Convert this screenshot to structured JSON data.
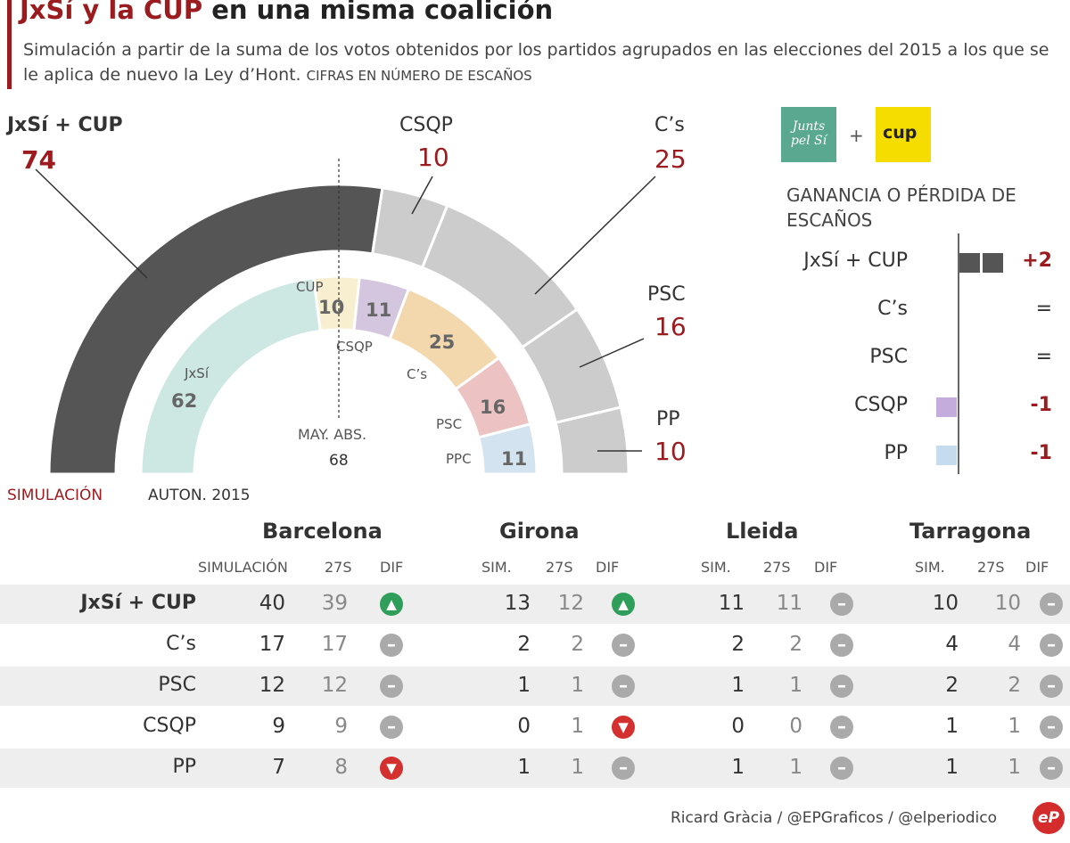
{
  "header": {
    "title_red": "JxSí y la CUP",
    "title_rest": " en una misma coalición",
    "subtitle": "Simulación a partir de la suma de los votos obtenidos por los partidos agrupados en las elecciones del 2015 a los que se le aplica de nuevo la Ley d’Hont. ",
    "subtitle_caps": "CIFRAS EN NÚMERO DE ESCAÑOS"
  },
  "chart_data": {
    "type": "pie",
    "subtype": "parliament-semicircle",
    "majority_label": "MAY. ABS.",
    "majority_value": "68",
    "outer_series_label": "SIMULACIÓN",
    "inner_series_label": "AUTON. 2015",
    "outer": [
      {
        "label": "JxSí + CUP",
        "value": 74,
        "color": "#555555"
      },
      {
        "label": "CSQP",
        "value": 10,
        "color": "#cccccc"
      },
      {
        "label": "C’s",
        "value": 25,
        "color": "#cccccc"
      },
      {
        "label": "PSC",
        "value": 16,
        "color": "#cccccc"
      },
      {
        "label": "PP",
        "value": 10,
        "color": "#cccccc"
      }
    ],
    "inner": [
      {
        "label": "JxSí",
        "value": 62,
        "color": "#cde7e3"
      },
      {
        "label": "CUP",
        "value": 10,
        "color": "#f7efcf"
      },
      {
        "label": "CSQP",
        "value": 11,
        "color": "#d5c6e0"
      },
      {
        "label": "C’s",
        "value": 25,
        "color": "#f3d8ae"
      },
      {
        "label": "PSC",
        "value": 16,
        "color": "#edc2c2"
      },
      {
        "label": "PPC",
        "value": 11,
        "color": "#d4e3f0"
      }
    ],
    "gain": {
      "title": "GANANCIA O PÉRDIDA DE ESCAÑOS",
      "rows": [
        {
          "label": "JxSí + CUP",
          "value": 2,
          "display": "+2",
          "color": "#555555"
        },
        {
          "label": "C’s",
          "value": 0,
          "display": "=",
          "color": "#cccccc"
        },
        {
          "label": "PSC",
          "value": 0,
          "display": "=",
          "color": "#cccccc"
        },
        {
          "label": "CSQP",
          "value": -1,
          "display": "-1",
          "color": "#c4addd"
        },
        {
          "label": "PP",
          "value": -1,
          "display": "-1",
          "color": "#c5dcef"
        }
      ]
    }
  },
  "logos": {
    "junts": "Junts pel Sí",
    "cup": "cup",
    "plus": "+"
  },
  "table": {
    "provinces": [
      "Barcelona",
      "Girona",
      "Lleida",
      "Tarragona"
    ],
    "col_heads": [
      [
        "SIMULACIÓN",
        "27S",
        "DIF"
      ],
      [
        "SIM.",
        "27S",
        "DIF"
      ],
      [
        "SIM.",
        "27S",
        "DIF"
      ],
      [
        "SIM.",
        "27S",
        "DIF"
      ]
    ],
    "rows": [
      {
        "party": "JxSí + CUP",
        "bold": true,
        "cells": [
          [
            "40",
            "39",
            "up"
          ],
          [
            "13",
            "12",
            "up"
          ],
          [
            "11",
            "11",
            "eq"
          ],
          [
            "10",
            "10",
            "eq"
          ]
        ]
      },
      {
        "party": "C’s",
        "bold": false,
        "cells": [
          [
            "17",
            "17",
            "eq"
          ],
          [
            "2",
            "2",
            "eq"
          ],
          [
            "2",
            "2",
            "eq"
          ],
          [
            "4",
            "4",
            "eq"
          ]
        ]
      },
      {
        "party": "PSC",
        "bold": false,
        "cells": [
          [
            "12",
            "12",
            "eq"
          ],
          [
            "1",
            "1",
            "eq"
          ],
          [
            "1",
            "1",
            "eq"
          ],
          [
            "2",
            "2",
            "eq"
          ]
        ]
      },
      {
        "party": "CSQP",
        "bold": false,
        "cells": [
          [
            "9",
            "9",
            "eq"
          ],
          [
            "0",
            "1",
            "down"
          ],
          [
            "0",
            "0",
            "eq"
          ],
          [
            "1",
            "1",
            "eq"
          ]
        ]
      },
      {
        "party": "PP",
        "bold": false,
        "cells": [
          [
            "7",
            "8",
            "down"
          ],
          [
            "1",
            "1",
            "eq"
          ],
          [
            "1",
            "1",
            "eq"
          ],
          [
            "1",
            "1",
            "eq"
          ]
        ]
      }
    ]
  },
  "footer": {
    "credits": "Ricard Gràcia / @EPGraficos / @elperiodico",
    "logo": "eP"
  }
}
